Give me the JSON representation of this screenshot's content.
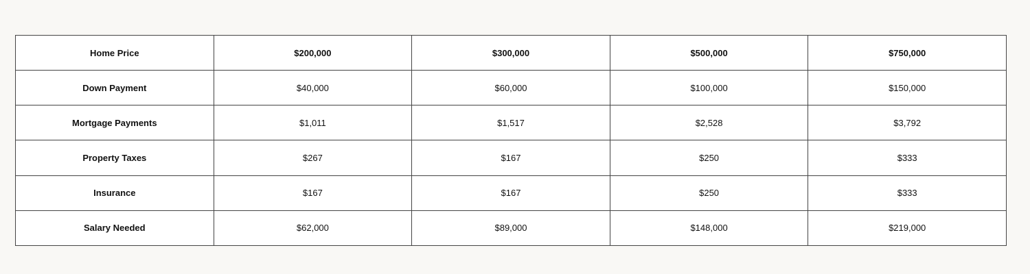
{
  "table": {
    "header": {
      "label": "Home Price",
      "values": [
        "$200,000",
        "$300,000",
        "$500,000",
        "$750,000"
      ]
    },
    "rows": [
      {
        "label": "Down Payment",
        "values": [
          "$40,000",
          "$60,000",
          "$100,000",
          "$150,000"
        ]
      },
      {
        "label": "Mortgage Payments",
        "values": [
          "$1,011",
          "$1,517",
          "$2,528",
          "$3,792"
        ]
      },
      {
        "label": "Property Taxes",
        "values": [
          "$267",
          "$167",
          "$250",
          "$333"
        ]
      },
      {
        "label": "Insurance",
        "values": [
          "$167",
          "$167",
          "$250",
          "$333"
        ]
      },
      {
        "label": "Salary Needed",
        "values": [
          "$62,000",
          "$89,000",
          "$148,000",
          "$219,000"
        ]
      }
    ]
  }
}
